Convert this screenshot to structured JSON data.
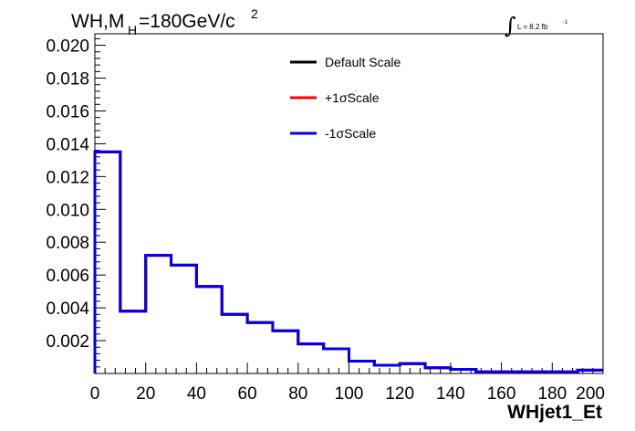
{
  "chart_data": {
    "type": "histogram",
    "title": {
      "main": "WH,M",
      "subscript": "H",
      "value": "=180GeV/c",
      "superscript": "2"
    },
    "annotation": {
      "integral_symbol": "∫",
      "text": "L = 8.2 fb",
      "superscript": "-1"
    },
    "xlabel": "WHjet1_Et",
    "ylabel": "",
    "xlim": [
      0,
      200
    ],
    "ylim": [
      0,
      0.0207
    ],
    "x_ticks": [
      "0",
      "20",
      "40",
      "60",
      "80",
      "100",
      "120",
      "140",
      "160",
      "180",
      "200"
    ],
    "y_ticks": [
      "0.002",
      "0.004",
      "0.006",
      "0.008",
      "0.010",
      "0.012",
      "0.014",
      "0.016",
      "0.018",
      "0.020"
    ],
    "bin_edges": [
      0,
      10,
      20,
      30,
      40,
      50,
      60,
      70,
      80,
      90,
      100,
      110,
      120,
      130,
      140,
      150,
      160,
      170,
      180,
      190,
      200
    ],
    "series": [
      {
        "name": "Default Scale",
        "color": "#000000",
        "values": [
          0.0135,
          0.0038,
          0.0072,
          0.0066,
          0.0053,
          0.0036,
          0.0031,
          0.0026,
          0.0018,
          0.0015,
          0.00075,
          0.0005,
          0.0006,
          0.00035,
          0.00025,
          0.0001,
          0.0001,
          0.0001,
          0.0001,
          0.0002
        ]
      },
      {
        "name": "+1σScale",
        "color": "#ff0000",
        "values": [
          0.0135,
          0.0038,
          0.0072,
          0.0066,
          0.0053,
          0.0036,
          0.0031,
          0.0026,
          0.0018,
          0.0015,
          0.00075,
          0.0005,
          0.0006,
          0.00035,
          0.00025,
          0.0001,
          0.0001,
          0.0001,
          0.0001,
          0.0002
        ]
      },
      {
        "name": "-1σScale",
        "color": "#0000ee",
        "values": [
          0.0135,
          0.0038,
          0.0072,
          0.0066,
          0.0053,
          0.0036,
          0.0031,
          0.0026,
          0.0018,
          0.0015,
          0.00075,
          0.0005,
          0.0006,
          0.00035,
          0.00025,
          0.0001,
          0.0001,
          0.0001,
          0.0001,
          0.0002
        ]
      }
    ],
    "legend_position": "top-center",
    "grid": false
  }
}
